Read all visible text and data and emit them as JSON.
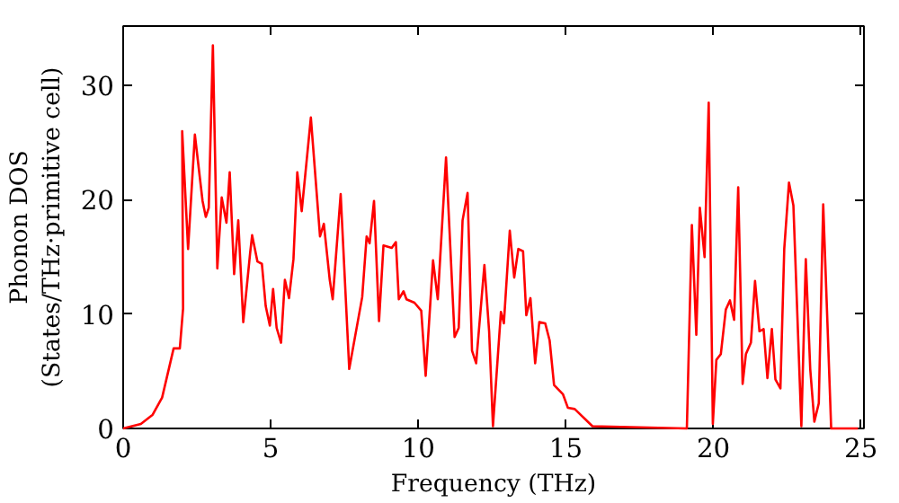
{
  "chart_data": {
    "type": "line",
    "xlabel": "Frequency (THz)",
    "ylabel": "Phonon DOS\n(States/THz·primitive cell)",
    "x": [
      0,
      0.6,
      1.0,
      1.32,
      1.71,
      1.92,
      2.03,
      2.0,
      2.2,
      2.43,
      2.69,
      2.8,
      2.9,
      3.04,
      3.19,
      3.34,
      3.5,
      3.61,
      3.76,
      3.9,
      4.07,
      4.3,
      4.37,
      4.55,
      4.7,
      4.83,
      4.97,
      5.08,
      5.2,
      5.35,
      5.48,
      5.62,
      5.77,
      5.9,
      6.05,
      6.36,
      6.67,
      6.8,
      7.0,
      7.1,
      7.37,
      7.66,
      8.1,
      8.25,
      8.35,
      8.5,
      8.67,
      8.82,
      9.1,
      9.24,
      9.34,
      9.5,
      9.6,
      9.87,
      10.1,
      10.25,
      10.5,
      10.66,
      10.94,
      11.23,
      11.37,
      11.5,
      11.67,
      11.82,
      11.96,
      12.24,
      12.4,
      12.53,
      12.8,
      12.9,
      13.1,
      13.25,
      13.39,
      13.55,
      13.66,
      13.8,
      13.96,
      14.1,
      14.3,
      14.45,
      14.6,
      14.9,
      15.07,
      15.3,
      15.9,
      19.1,
      19.27,
      19.42,
      19.54,
      19.7,
      19.84,
      19.98,
      20.1,
      20.25,
      20.42,
      20.56,
      20.7,
      20.84,
      20.99,
      21.1,
      21.27,
      21.41,
      21.56,
      21.7,
      21.83,
      21.98,
      22.1,
      22.27,
      22.4,
      22.56,
      22.71,
      22.98,
      23.13,
      23.28,
      23.42,
      23.57,
      23.72,
      23.99,
      24.9
    ],
    "series": [
      {
        "color": "#ff0000",
        "values": [
          0,
          0.4,
          1.2,
          2.7,
          7.0,
          7.0,
          10.5,
          26,
          15.7,
          25.7,
          19.9,
          18.5,
          19.3,
          33.5,
          14,
          20.2,
          18,
          22.4,
          13.5,
          18.2,
          9.3,
          15.3,
          16.9,
          14.6,
          14.4,
          10.7,
          9,
          12.2,
          8.8,
          7.5,
          13,
          11.4,
          14.8,
          22.4,
          19,
          27.2,
          16.8,
          17.9,
          13,
          11.3,
          20.5,
          5.2,
          11.5,
          16.8,
          16.2,
          19.9,
          9.4,
          16,
          15.8,
          16.3,
          11.3,
          12,
          11.3,
          11,
          10.3,
          4.6,
          14.7,
          11.3,
          23.7,
          8,
          8.8,
          18.2,
          20.6,
          6.8,
          5.7,
          14.3,
          8.5,
          0.2,
          10.2,
          9.2,
          17.3,
          13.2,
          15.7,
          15.5,
          9.9,
          11.4,
          5.7,
          9.3,
          9.2,
          7.7,
          3.8,
          3.0,
          1.8,
          1.7,
          0.2,
          0,
          17.8,
          8.2,
          19.3,
          15,
          28.5,
          0.4,
          6,
          6.5,
          10.4,
          11.2,
          9.5,
          21.1,
          3.9,
          6.5,
          7.5,
          12.9,
          8.5,
          8.7,
          4.4,
          8.7,
          4.3,
          3.5,
          15.7,
          21.5,
          19.5,
          0.2,
          14.8,
          5.2,
          0.6,
          2.2,
          19.6,
          0,
          0
        ]
      }
    ],
    "xlim": [
      0,
      25.1
    ],
    "ylim": [
      0,
      35.2
    ],
    "xticks": [
      0,
      5,
      10,
      15,
      20,
      25
    ],
    "yticks": [
      0,
      10,
      20,
      30
    ],
    "grid": false,
    "marker": "none",
    "line_style": "solid"
  }
}
